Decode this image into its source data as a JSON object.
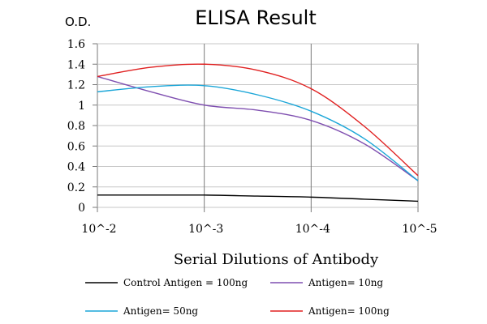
{
  "chart_data": {
    "type": "line",
    "title": "ELISA Result",
    "ylabel": "O.D.",
    "xlabel": "Serial Dilutions  of Antibody",
    "x_categories": [
      "10^-2",
      "10^-3",
      "10^-4",
      "10^-5"
    ],
    "ylim": [
      0,
      1.6
    ],
    "yticks": [
      "0",
      "0.2",
      "0.4",
      "0.6",
      "0.8",
      "1",
      "1.2",
      "1.4",
      "1.6"
    ],
    "grid": true,
    "legend_position": "bottom",
    "series": [
      {
        "name": "Control Antigen = 100ng",
        "color": "#000000",
        "x": [
          0,
          0.5,
          1,
          1.5,
          2,
          2.5,
          3
        ],
        "values": [
          0.12,
          0.12,
          0.12,
          0.11,
          0.1,
          0.08,
          0.06
        ]
      },
      {
        "name": "Antigen= 10ng",
        "color": "#7F4FB0",
        "x": [
          0,
          0.5,
          1,
          1.5,
          2,
          2.5,
          3
        ],
        "values": [
          1.28,
          1.13,
          1.0,
          0.95,
          0.85,
          0.62,
          0.26
        ]
      },
      {
        "name": "Antigen= 50ng",
        "color": "#1BA6D8",
        "x": [
          0,
          0.5,
          1,
          1.5,
          2,
          2.5,
          3
        ],
        "values": [
          1.13,
          1.18,
          1.19,
          1.1,
          0.94,
          0.67,
          0.26
        ]
      },
      {
        "name": "Antigen= 100ng",
        "color": "#E02020",
        "x": [
          0,
          0.5,
          1,
          1.5,
          2,
          2.5,
          3
        ],
        "values": [
          1.28,
          1.37,
          1.4,
          1.34,
          1.16,
          0.79,
          0.31
        ]
      }
    ]
  }
}
